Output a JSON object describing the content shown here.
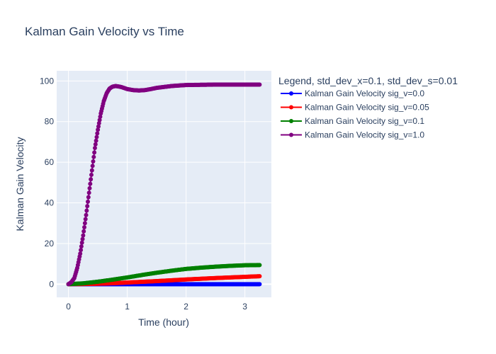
{
  "chart_data": {
    "type": "line",
    "title": "Kalman Gain Velocity vs Time",
    "xlabel": "Time (hour)",
    "ylabel": "Kalman Gain Velocity",
    "xlim": [
      -0.2,
      3.45
    ],
    "ylim": [
      -6.5,
      105
    ],
    "x_ticks": [
      0,
      1,
      2,
      3
    ],
    "y_ticks": [
      0,
      20,
      40,
      60,
      80,
      100
    ],
    "grid": true,
    "legend": {
      "title": "Legend, std_dev_x=0.1, std_dev_s=0.01",
      "placement": "right"
    },
    "series": [
      {
        "name": "Kalman Gain Velocity sig_v=0.0",
        "color": "#0000ff",
        "x": [
          0,
          0.25,
          0.5,
          0.75,
          1.0,
          1.5,
          2.0,
          2.5,
          3.0,
          3.25
        ],
        "values": [
          0,
          0,
          0,
          0,
          0,
          0,
          0,
          0,
          0,
          0
        ]
      },
      {
        "name": "Kalman Gain Velocity sig_v=0.05",
        "color": "#ff0000",
        "x": [
          0,
          0.25,
          0.5,
          0.75,
          1.0,
          1.25,
          1.5,
          1.75,
          2.0,
          2.25,
          2.5,
          2.75,
          3.0,
          3.25
        ],
        "values": [
          0,
          0.05,
          0.2,
          0.45,
          0.8,
          1.15,
          1.5,
          1.9,
          2.3,
          2.65,
          3.0,
          3.3,
          3.6,
          3.9
        ]
      },
      {
        "name": "Kalman Gain Velocity sig_v=0.1",
        "color": "#008000",
        "x": [
          0,
          0.25,
          0.5,
          0.75,
          1.0,
          1.25,
          1.5,
          1.75,
          2.0,
          2.25,
          2.5,
          2.75,
          3.0,
          3.25
        ],
        "values": [
          0,
          0.4,
          1.2,
          2.2,
          3.3,
          4.5,
          5.6,
          6.6,
          7.5,
          8.1,
          8.6,
          9.0,
          9.3,
          9.4
        ]
      },
      {
        "name": "Kalman Gain Velocity sig_v=1.0",
        "color": "#800080",
        "x": [
          0,
          0.05,
          0.1,
          0.15,
          0.2,
          0.25,
          0.3,
          0.35,
          0.4,
          0.45,
          0.5,
          0.55,
          0.6,
          0.65,
          0.7,
          0.75,
          0.8,
          0.85,
          0.9,
          0.95,
          1.0,
          1.1,
          1.2,
          1.3,
          1.4,
          1.5,
          1.75,
          2.0,
          2.25,
          2.5,
          2.75,
          3.0,
          3.25
        ],
        "values": [
          0,
          1,
          3,
          8,
          15,
          24,
          34,
          45,
          56,
          67,
          76,
          84,
          90,
          94,
          96.3,
          97.2,
          97.5,
          97.3,
          97.0,
          96.5,
          96.0,
          95.5,
          95.3,
          95.5,
          96.0,
          96.6,
          97.5,
          98.0,
          98.1,
          98.2,
          98.2,
          98.2,
          98.2
        ]
      }
    ]
  }
}
